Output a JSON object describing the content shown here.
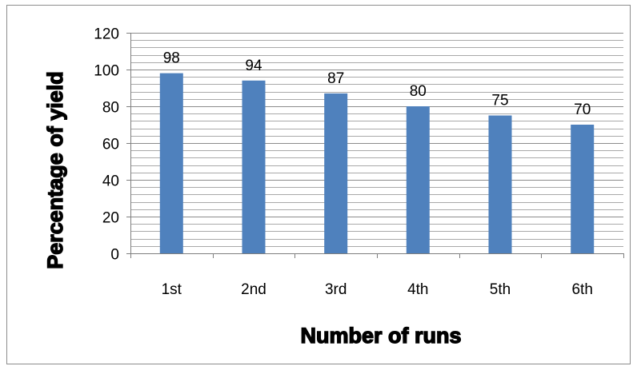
{
  "chart_data": {
    "type": "bar",
    "title": "",
    "xlabel": "Number of runs",
    "ylabel": "Percentage of yield",
    "categories": [
      "1st",
      "2nd",
      "3rd",
      "4th",
      "5th",
      "6th"
    ],
    "values": [
      98,
      94,
      87,
      80,
      75,
      70
    ],
    "data_labels": [
      "98",
      "94",
      "87",
      "80",
      "75",
      "70"
    ],
    "y_ticks": [
      "0",
      "20",
      "40",
      "60",
      "80",
      "100",
      "120"
    ],
    "ylim": [
      0,
      120
    ],
    "major_step": 20,
    "minor_step": 4,
    "grid": true,
    "legend": "none",
    "bar_color": "#4F81BD",
    "grid_color": "#8c8c8c"
  }
}
